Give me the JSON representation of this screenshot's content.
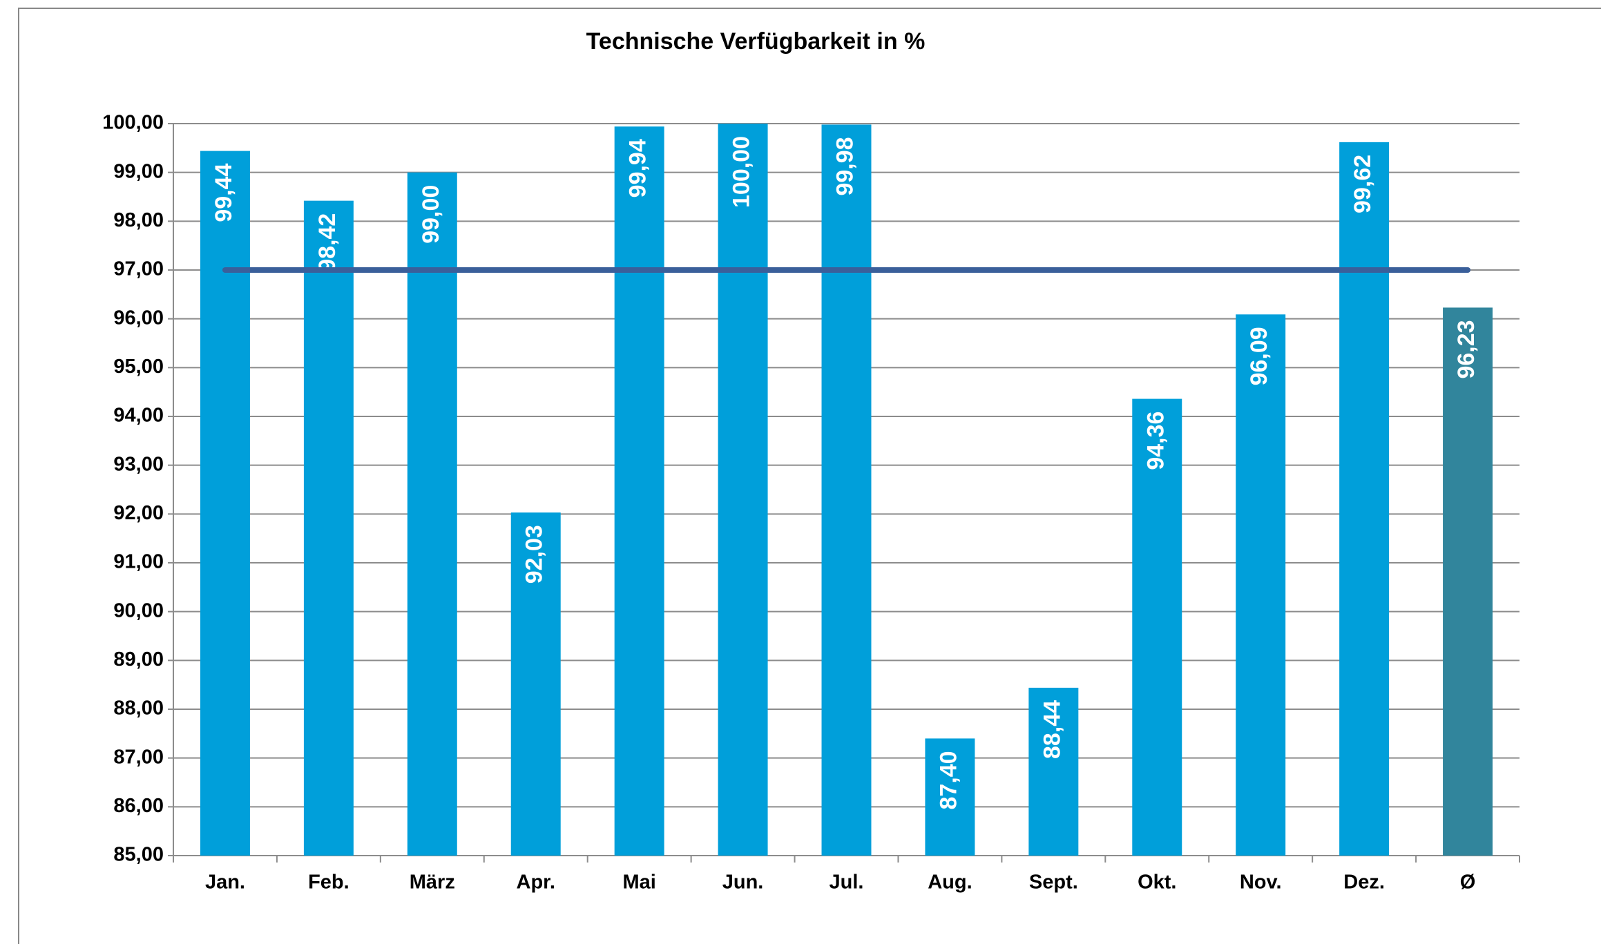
{
  "chart_data": {
    "type": "bar",
    "title": "Technische Verfügbarkeit in %",
    "categories": [
      "Jan.",
      "Feb.",
      "März",
      "Apr.",
      "Mai",
      "Jun.",
      "Jul.",
      "Aug.",
      "Sept.",
      "Okt.",
      "Nov.",
      "Dez.",
      "Ø"
    ],
    "series": [
      {
        "type": "bar",
        "colors": [
          "#009fda",
          "#009fda",
          "#009fda",
          "#009fda",
          "#009fda",
          "#009fda",
          "#009fda",
          "#009fda",
          "#009fda",
          "#009fda",
          "#009fda",
          "#009fda",
          "#31859c"
        ],
        "values": [
          99.44,
          98.42,
          99.0,
          92.03,
          99.94,
          100.0,
          99.98,
          87.4,
          88.44,
          94.36,
          96.09,
          99.62,
          96.23
        ],
        "value_labels": [
          "99,44",
          "98,42",
          "99,00",
          "92,03",
          "99,94",
          "100,00",
          "99,98",
          "87,40",
          "88,44",
          "94,36",
          "96,09",
          "99,62",
          "96,23"
        ]
      },
      {
        "type": "line",
        "color": "#3a5f9a",
        "values": [
          97,
          97,
          97,
          97,
          97,
          97,
          97,
          97,
          97,
          97,
          97,
          97,
          97
        ]
      }
    ],
    "ylim": [
      85,
      100
    ],
    "yticks": [
      {
        "value": 85,
        "label": "85,00"
      },
      {
        "value": 86,
        "label": "86,00"
      },
      {
        "value": 87,
        "label": "87,00"
      },
      {
        "value": 88,
        "label": "88,00"
      },
      {
        "value": 89,
        "label": "89,00"
      },
      {
        "value": 90,
        "label": "90,00"
      },
      {
        "value": 91,
        "label": "91,00"
      },
      {
        "value": 92,
        "label": "92,00"
      },
      {
        "value": 93,
        "label": "93,00"
      },
      {
        "value": 94,
        "label": "94,00"
      },
      {
        "value": 95,
        "label": "95,00"
      },
      {
        "value": 96,
        "label": "96,00"
      },
      {
        "value": 97,
        "label": "97,00"
      },
      {
        "value": 98,
        "label": "98,00"
      },
      {
        "value": 99,
        "label": "99,00"
      },
      {
        "value": 100,
        "label": "100,00"
      }
    ],
    "grid": true
  }
}
